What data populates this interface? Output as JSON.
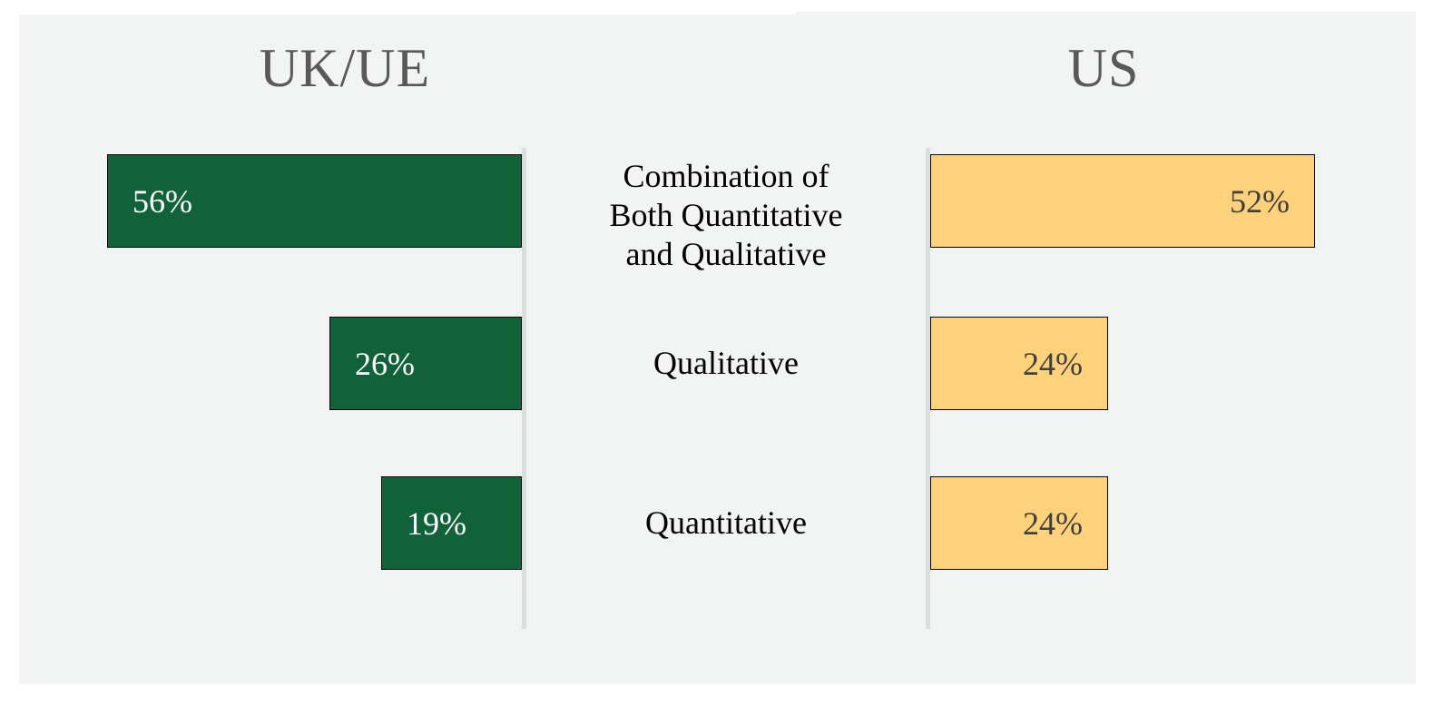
{
  "titles": {
    "left": "UK/UE",
    "right": "US"
  },
  "chart_data": {
    "type": "bar",
    "variant": "diverging-butterfly",
    "categories": [
      "Combination of Both Quantitative and Qualitative",
      "Qualitative",
      "Quantitative"
    ],
    "series": [
      {
        "name": "UK/UE",
        "values": [
          56,
          26,
          19
        ]
      },
      {
        "name": "US",
        "values": [
          52,
          24,
          24
        ]
      }
    ],
    "unit": "%",
    "grid": false,
    "legend_position": "column-titles-above-charts",
    "value_label_position": {
      "uk_ue": "inside-left",
      "us": "inside-right"
    },
    "colors": {
      "uk_ue_bar": "#106339",
      "us_bar": "#FDD27B",
      "bar_border": "#000000",
      "uk_value_text": "#FFFFFF",
      "us_value_text": "#404040",
      "title_text": "#595959",
      "category_text": "#000000",
      "axis_line": "#DCDDDD",
      "panel_background": "#F2F3F3"
    }
  },
  "rows": [
    {
      "label_lines": [
        "Combination of",
        "Both Quantitative",
        "and Qualitative"
      ],
      "left_value": "56%",
      "right_value": "52%"
    },
    {
      "label_lines": [
        "Qualitative"
      ],
      "left_value": "26%",
      "right_value": "24%"
    },
    {
      "label_lines": [
        "Quantitative"
      ],
      "left_value": "19%",
      "right_value": "24%"
    }
  ]
}
